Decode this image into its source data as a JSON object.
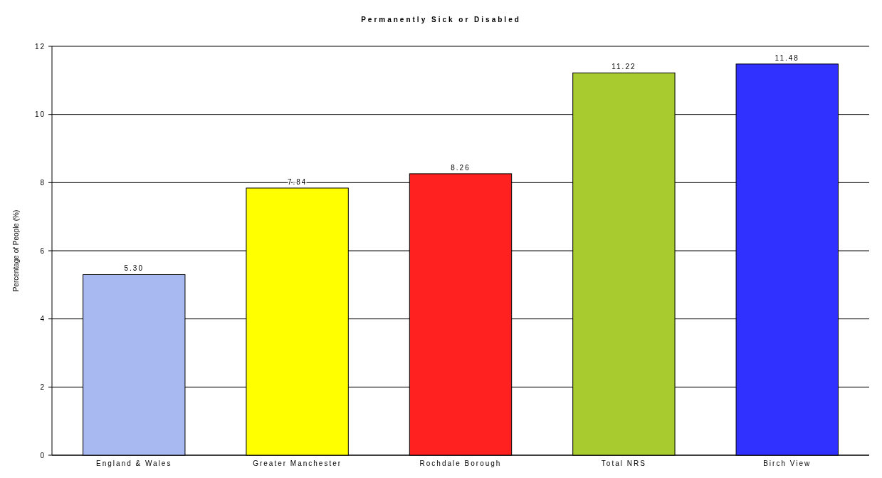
{
  "chart_data": {
    "type": "bar",
    "title": "Permanently Sick or Disabled",
    "ylabel": "Percentage of People (%)",
    "categories": [
      "England & Wales",
      "Greater Manchester",
      "Rochdale Borough",
      "Total NRS",
      "Birch View"
    ],
    "values": [
      5.3,
      7.84,
      8.26,
      11.22,
      11.48
    ],
    "colors": [
      "#a8b8f0",
      "#ffff00",
      "#ff2020",
      "#a8cc30",
      "#3030ff"
    ],
    "value_labels": [
      "5.30",
      "7.84",
      "8.26",
      "11.22",
      "11.48"
    ],
    "ylim": [
      0,
      12
    ],
    "yticks": [
      0,
      2,
      4,
      6,
      8,
      10,
      12
    ],
    "grid": "y"
  }
}
